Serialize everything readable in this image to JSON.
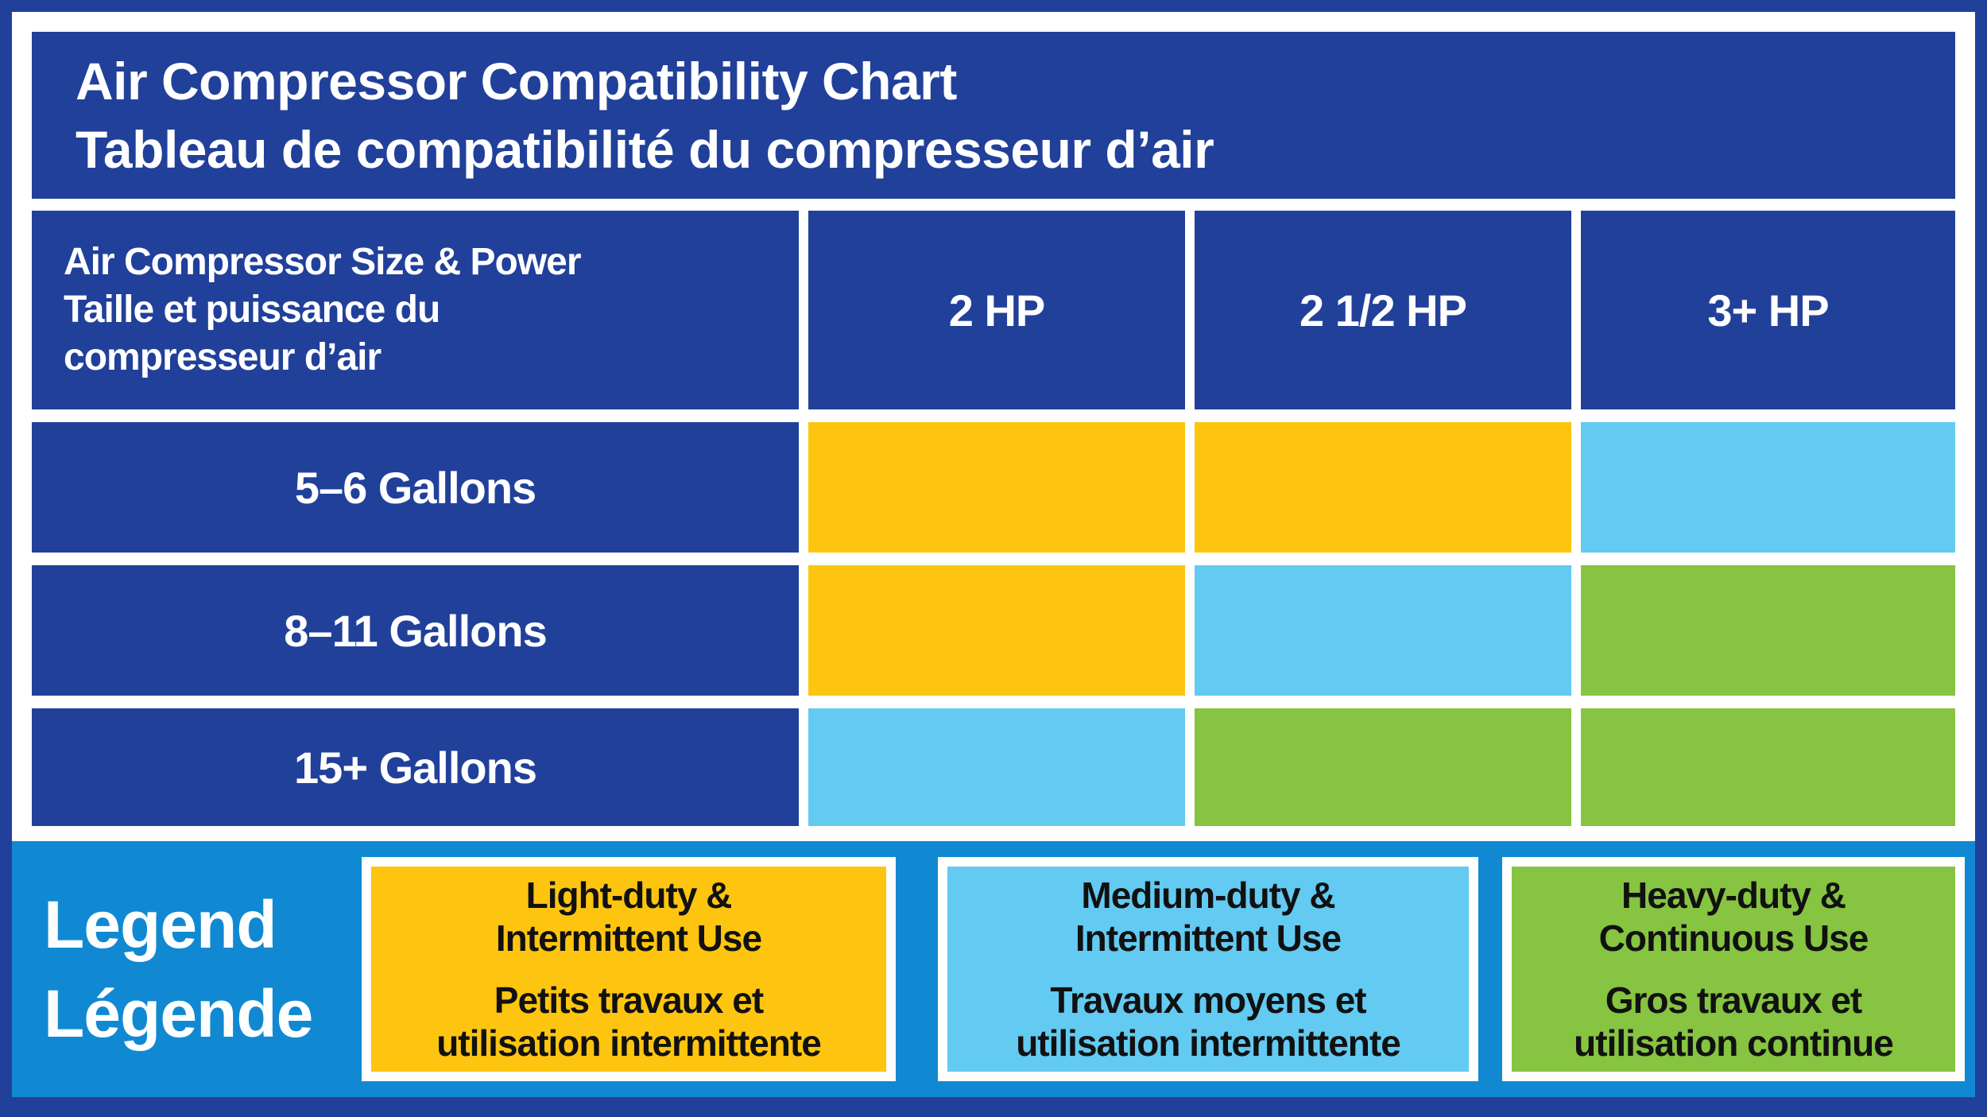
{
  "colors": {
    "navy": "#21409a",
    "frame_white": "#ffffff",
    "legend_background_blue": "#1189d2",
    "yellow": "#fdc50f",
    "light_blue": "#63caf1",
    "green": "#86c441",
    "legend_text_black": "#111111"
  },
  "title": {
    "line1": "Air Compressor Compatibility Chart",
    "line2": "Tableau de compatibilité du compresseur d’air"
  },
  "table": {
    "corner": [
      "Air Compressor Size & Power",
      "Taille et puissance du",
      "compresseur d’air"
    ],
    "column_headers": [
      "2 HP",
      "2 1/2 HP",
      "3+ HP"
    ],
    "rows": [
      {
        "label": "5–6 Gallons",
        "cells": [
          "yellow",
          "yellow",
          "light_blue"
        ]
      },
      {
        "label": "8–11 Gallons",
        "cells": [
          "yellow",
          "light_blue",
          "green"
        ]
      },
      {
        "label": "15+ Gallons",
        "cells": [
          "light_blue",
          "green",
          "green"
        ]
      }
    ]
  },
  "legend": {
    "title": [
      "Legend",
      "Légende"
    ],
    "items": [
      {
        "color": "yellow",
        "en": [
          "Light-duty &",
          "Intermittent Use"
        ],
        "fr": [
          "Petits travaux et",
          "utilisation intermittente"
        ]
      },
      {
        "color": "light_blue",
        "en": [
          "Medium-duty &",
          "Intermittent Use"
        ],
        "fr": [
          "Travaux moyens et",
          "utilisation intermittente"
        ]
      },
      {
        "color": "green",
        "en": [
          "Heavy-duty &",
          "Continuous Use"
        ],
        "fr": [
          "Gros travaux et",
          "utilisation continue"
        ]
      }
    ]
  },
  "chart_data": {
    "type": "table",
    "title": "Air Compressor Compatibility Chart",
    "title_fr": "Tableau de compatibilité du compresseur d’air",
    "row_header": "Air Compressor Size & Power / Taille et puissance du compresseur d’air",
    "columns": [
      "2 HP",
      "2 1/2 HP",
      "3+ HP"
    ],
    "rows": [
      "5–6 Gallons",
      "8–11 Gallons",
      "15+ Gallons"
    ],
    "values": [
      [
        "Light-duty & Intermittent Use",
        "Light-duty & Intermittent Use",
        "Medium-duty & Intermittent Use"
      ],
      [
        "Light-duty & Intermittent Use",
        "Medium-duty & Intermittent Use",
        "Heavy-duty & Continuous Use"
      ],
      [
        "Medium-duty & Intermittent Use",
        "Heavy-duty & Continuous Use",
        "Heavy-duty & Continuous Use"
      ]
    ],
    "legend": [
      {
        "color": "#fdc50f",
        "label": "Light-duty & Intermittent Use / Petits travaux et utilisation intermittente"
      },
      {
        "color": "#63caf1",
        "label": "Medium-duty & Intermittent Use / Travaux moyens et utilisation intermittente"
      },
      {
        "color": "#86c441",
        "label": "Heavy-duty & Continuous Use / Gros travaux et utilisation continue"
      }
    ],
    "layout": {
      "legend_position": "bottom",
      "grid": "white gridlines on navy table"
    }
  }
}
